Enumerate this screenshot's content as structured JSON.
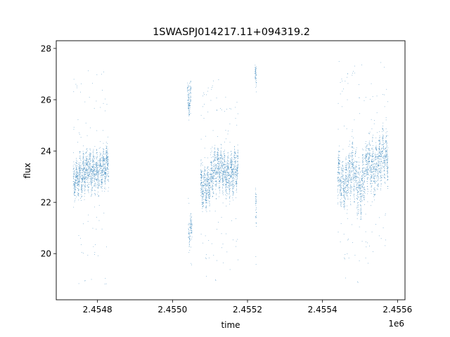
{
  "chart_data": {
    "type": "scatter",
    "title": "1SWASPJ014217.11+094319.2",
    "xlabel": "time",
    "ylabel": "flux",
    "x_offset_label": "1e6",
    "xlim": [
      2454690,
      2455620
    ],
    "ylim": [
      18.2,
      28.3
    ],
    "x_ticks": [
      2454800,
      2455000,
      2455200,
      2455400,
      2455600
    ],
    "x_tick_labels": [
      "2.4548",
      "2.4550",
      "2.4552",
      "2.4554",
      "2.4556"
    ],
    "y_ticks": [
      20,
      22,
      24,
      26,
      28
    ],
    "y_tick_labels": [
      "20",
      "22",
      "24",
      "26",
      "28"
    ],
    "grid": false,
    "marker_color": "#1f77b4",
    "marker": "point",
    "series": [
      {
        "segments": [
          {
            "x_range": [
              2454735,
              2454830
            ],
            "flux_trend": [
              [
                2454735,
                22.9
              ],
              [
                2454755,
                23.0
              ],
              [
                2454775,
                23.3
              ],
              [
                2454800,
                23.1
              ],
              [
                2454815,
                23.4
              ],
              [
                2454830,
                23.5
              ]
            ],
            "spread": 0.55,
            "density": 1400,
            "outlier_range": [
              18.8,
              27.2
            ]
          },
          {
            "x_range": [
              2455040,
              2455050
            ],
            "flux_trend": [
              [
                2455040,
                25.9
              ],
              [
                2455050,
                26.1
              ]
            ],
            "spread": 0.5,
            "density": 120,
            "outlier_range": [
              25.0,
              27.0
            ]
          },
          {
            "x_range": [
              2455042,
              2455052
            ],
            "flux_trend": [
              [
                2455042,
                20.8
              ],
              [
                2455052,
                21.0
              ]
            ],
            "spread": 0.45,
            "density": 100,
            "outlier_range": [
              18.6,
              22.2
            ]
          },
          {
            "x_range": [
              2455075,
              2455175
            ],
            "flux_trend": [
              [
                2455075,
                22.6
              ],
              [
                2455095,
                22.6
              ],
              [
                2455110,
                23.2
              ],
              [
                2455130,
                23.4
              ],
              [
                2455150,
                23.0
              ],
              [
                2455175,
                23.4
              ]
            ],
            "spread": 0.6,
            "density": 1500,
            "outlier_range": [
              18.7,
              27.0
            ]
          },
          {
            "x_range": [
              2455220,
              2455224
            ],
            "flux_trend": [
              [
                2455220,
                26.9
              ],
              [
                2455224,
                27.0
              ]
            ],
            "spread": 0.35,
            "density": 50,
            "outlier_range": [
              26.3,
              27.5
            ]
          },
          {
            "x_range": [
              2455221,
              2455224
            ],
            "flux_trend": [
              [
                2455221,
                21.8
              ],
              [
                2455224,
                22.0
              ]
            ],
            "spread": 0.6,
            "density": 40,
            "outlier_range": [
              19.5,
              22.8
            ]
          },
          {
            "x_range": [
              2455440,
              2455575
            ],
            "flux_trend": [
              [
                2455440,
                23.1
              ],
              [
                2455460,
                22.6
              ],
              [
                2455480,
                23.4
              ],
              [
                2455500,
                22.3
              ],
              [
                2455520,
                23.7
              ],
              [
                2455540,
                23.3
              ],
              [
                2455560,
                23.9
              ],
              [
                2455575,
                23.8
              ]
            ],
            "spread": 0.75,
            "density": 1800,
            "outlier_range": [
              18.6,
              27.6
            ]
          }
        ]
      }
    ]
  }
}
